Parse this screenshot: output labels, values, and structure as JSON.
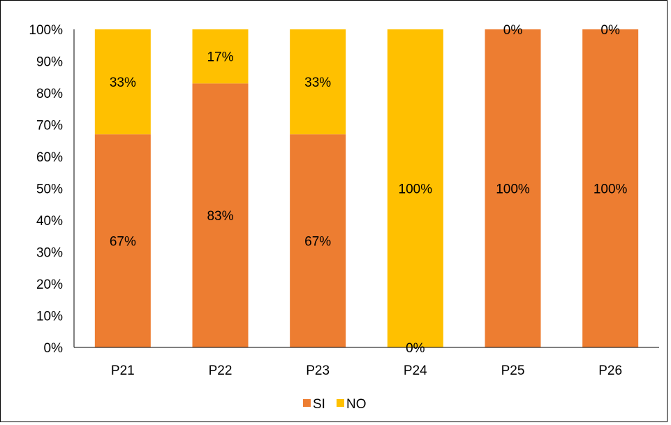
{
  "chart_data": {
    "type": "bar",
    "stacked": true,
    "categories": [
      "P21",
      "P22",
      "P23",
      "P24",
      "P25",
      "P26"
    ],
    "series": [
      {
        "name": "SI",
        "color": "#ED7D31",
        "values": [
          67,
          83,
          67,
          0,
          100,
          100
        ],
        "labels": [
          "67%",
          "83%",
          "67%",
          "0%",
          "100%",
          "100%"
        ]
      },
      {
        "name": "NO",
        "color": "#FFC000",
        "values": [
          33,
          17,
          33,
          100,
          0,
          0
        ],
        "labels": [
          "33%",
          "17%",
          "33%",
          "100%",
          "0%",
          "0%"
        ]
      }
    ],
    "yticks": [
      "0%",
      "10%",
      "20%",
      "30%",
      "40%",
      "50%",
      "60%",
      "70%",
      "80%",
      "90%",
      "100%"
    ],
    "ylim": [
      0,
      100
    ],
    "grid": false,
    "legend_position": "bottom"
  }
}
